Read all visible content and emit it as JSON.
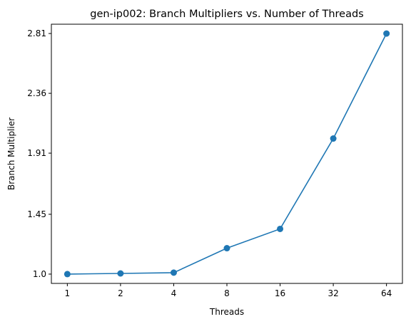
{
  "chart_data": {
    "type": "line",
    "title": "gen-ip002: Branch Multipliers vs. Number of Threads",
    "xlabel": "Threads",
    "ylabel": "Branch Multiplier",
    "x_scale": "log2",
    "x": [
      1,
      2,
      4,
      8,
      16,
      32,
      64
    ],
    "x_tick_labels": [
      "1",
      "2",
      "4",
      "8",
      "16",
      "32",
      "64"
    ],
    "y_ticks": [
      1.0,
      1.45,
      1.91,
      2.36,
      2.81
    ],
    "y_tick_labels": [
      "1.0",
      "1.45",
      "1.91",
      "2.36",
      "2.81"
    ],
    "ylim": [
      0.93,
      2.88
    ],
    "grid": false,
    "series": [
      {
        "values": [
          1.0,
          1.005,
          1.011,
          1.195,
          1.34,
          2.02,
          2.81
        ],
        "color": "#1f77b4",
        "marker": "circle"
      }
    ]
  }
}
